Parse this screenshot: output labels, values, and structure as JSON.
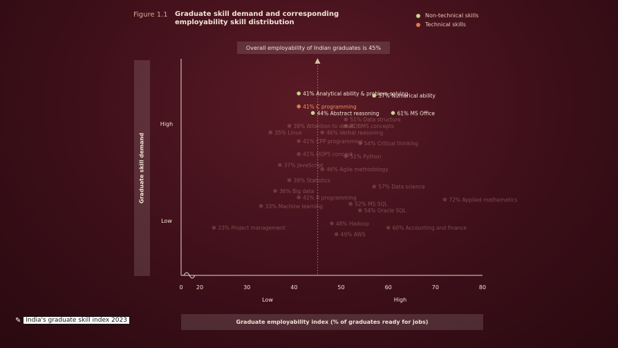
{
  "figure": {
    "label": "Figure 1.1",
    "title_line1": "Graduate skill demand and corresponding",
    "title_line2": "employability skill distribution"
  },
  "legend": {
    "items": [
      {
        "label": "Non-technical skills",
        "color": "#c8d48a"
      },
      {
        "label": "Technical skills",
        "color": "#e07a4e"
      }
    ]
  },
  "banner": "Overall employability of Indian graduates is 45%",
  "footer": {
    "brand": "India's graduate skill index 2023"
  },
  "chart_data": {
    "type": "scatter",
    "title": "Graduate skill demand and corresponding employability skill distribution",
    "xlabel": "Graduate employability index (% of graduates ready for jobs)",
    "ylabel": "Graduate skill demand",
    "x_ticks": [
      "0",
      "20",
      "30",
      "40",
      "50",
      "60",
      "70",
      "80"
    ],
    "x_qualitative": [
      "Low",
      "High"
    ],
    "y_qualitative": [
      "High",
      "Low"
    ],
    "xlim": [
      0,
      80
    ],
    "ylim": [
      0,
      10
    ],
    "reference_line": {
      "x": 45,
      "label": "Overall employability of Indian graduates is 45%"
    },
    "points": [
      {
        "label": "Analytical ability & problem-solving",
        "value_label": "41%",
        "x": 41,
        "y": 8.4,
        "category": "non-technical",
        "highlight": true
      },
      {
        "label": "Numerical ability",
        "value_label": "57%",
        "x": 57,
        "y": 8.3,
        "category": "non-technical",
        "highlight": true
      },
      {
        "label": "C programming",
        "value_label": "41%",
        "x": 41,
        "y": 7.8,
        "category": "technical",
        "highlight": true
      },
      {
        "label": "Abstract reasoning",
        "value_label": "44%",
        "x": 44,
        "y": 7.5,
        "category": "non-technical",
        "highlight": true
      },
      {
        "label": "MS Office",
        "value_label": "61%",
        "x": 61,
        "y": 7.5,
        "category": "non-technical",
        "highlight": true
      },
      {
        "label": "Data structure",
        "value_label": "51%",
        "x": 51,
        "y": 7.2,
        "category": "technical",
        "highlight": false
      },
      {
        "label": "RDBMS concepts",
        "value_label": "",
        "x": 51,
        "y": 6.9,
        "category": "technical",
        "highlight": false
      },
      {
        "label": "Attention to detail",
        "value_label": "39%",
        "x": 39,
        "y": 6.9,
        "category": "non-technical",
        "highlight": false
      },
      {
        "label": "Linux",
        "value_label": "35%",
        "x": 35,
        "y": 6.6,
        "category": "technical",
        "highlight": false
      },
      {
        "label": "Verbal reasoning",
        "value_label": "46%",
        "x": 46,
        "y": 6.6,
        "category": "non-technical",
        "highlight": false
      },
      {
        "label": "CPP programming",
        "value_label": "41%",
        "x": 41,
        "y": 6.2,
        "category": "technical",
        "highlight": false
      },
      {
        "label": "Critical thinking",
        "value_label": "54%",
        "x": 54,
        "y": 6.1,
        "category": "non-technical",
        "highlight": false
      },
      {
        "label": "OOPS concept",
        "value_label": "41%",
        "x": 41,
        "y": 5.6,
        "category": "technical",
        "highlight": false
      },
      {
        "label": "Python",
        "value_label": "51%",
        "x": 51,
        "y": 5.5,
        "category": "technical",
        "highlight": false
      },
      {
        "label": "JavaScript",
        "value_label": "37%",
        "x": 37,
        "y": 5.1,
        "category": "technical",
        "highlight": false
      },
      {
        "label": "Agile methodology",
        "value_label": "46%",
        "x": 46,
        "y": 4.9,
        "category": "non-technical",
        "highlight": false
      },
      {
        "label": "Statistics",
        "value_label": "39%",
        "x": 39,
        "y": 4.4,
        "category": "technical",
        "highlight": false
      },
      {
        "label": "Data science",
        "value_label": "57%",
        "x": 57,
        "y": 4.1,
        "category": "technical",
        "highlight": false
      },
      {
        "label": "Big data",
        "value_label": "36%",
        "x": 36,
        "y": 3.9,
        "category": "technical",
        "highlight": false
      },
      {
        "label": "R programming",
        "value_label": "41%",
        "x": 41,
        "y": 3.6,
        "category": "technical",
        "highlight": false
      },
      {
        "label": "Applied mathematics",
        "value_label": "72%",
        "x": 72,
        "y": 3.5,
        "category": "non-technical",
        "highlight": false
      },
      {
        "label": "Machine learning",
        "value_label": "33%",
        "x": 33,
        "y": 3.2,
        "category": "technical",
        "highlight": false
      },
      {
        "label": "MS SQL",
        "value_label": "52%",
        "x": 52,
        "y": 3.3,
        "category": "technical",
        "highlight": false
      },
      {
        "label": "Oracle SQL",
        "value_label": "54%",
        "x": 54,
        "y": 3.0,
        "category": "technical",
        "highlight": false
      },
      {
        "label": "Project management",
        "value_label": "23%",
        "x": 23,
        "y": 2.2,
        "category": "non-technical",
        "highlight": false
      },
      {
        "label": "Hadoop",
        "value_label": "48%",
        "x": 48,
        "y": 2.4,
        "category": "technical",
        "highlight": false
      },
      {
        "label": "Accounting and finance",
        "value_label": "60%",
        "x": 60,
        "y": 2.2,
        "category": "non-technical",
        "highlight": false
      },
      {
        "label": "AWS",
        "value_label": "49%",
        "x": 49,
        "y": 1.9,
        "category": "technical",
        "highlight": false
      }
    ]
  }
}
